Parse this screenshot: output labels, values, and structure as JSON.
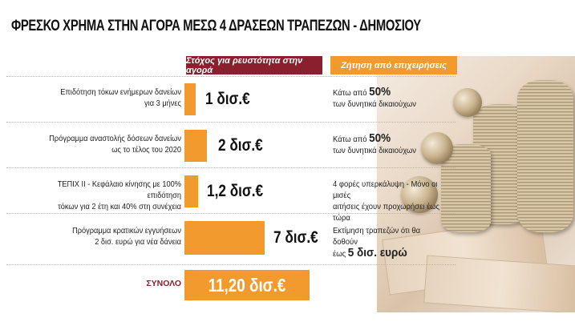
{
  "title": "ΦΡΕΣΚΟ ΧΡΗΜΑ ΣΤΗΝ ΑΓΟΡΑ ΜΕΣΩ 4 ΔΡΑΣΕΩΝ ΤΡΑΠΕΖΩΝ - ΔΗΜΟΣΙΟΥ",
  "headers": {
    "stock": "Στόχος για ρευστότητα στην αγορά",
    "demand": "Ζήτηση από επιχειρήσεις"
  },
  "rows": [
    {
      "label_line1": "Επιδότηση τόκων ενήμερων δανείων",
      "label_line2": "για 3 μήνες",
      "value": "1 δισ.€",
      "amount": 1.0,
      "demand_line1_prefix": "Κάτω από",
      "demand_line1_big": "50%",
      "demand_line2": "των δυνητικά δικαιούχων"
    },
    {
      "label_line1": "Πρόγραμμα αναστολής δόσεων δανείων",
      "label_line2": "ως το τέλος του 2020",
      "value": "2 δισ.€",
      "amount": 2.0,
      "demand_line1_prefix": "Κάτω από",
      "demand_line1_big": "50%",
      "demand_line2": "των δυνητικά δικαιούχων"
    },
    {
      "label_line1": "ΤΕΠΙΧ ΙΙ - Κεφάλαιο κίνησης με 100% επιδότηση",
      "label_line2": "τόκων για 2 έτη και 40% στη συνέχεια",
      "value": "1,2 δισ.€",
      "amount": 1.2,
      "demand_line1": "4 φορές υπερκάλυψη - Μόνο οι μισές",
      "demand_line2": "αιτήσεις έχουν προχωρήσει έως τώρα"
    },
    {
      "label_line1": "Πρόγραμμα κρατικών εγγυήσεων",
      "label_line2": "2 δισ. ευρώ για νέα δάνεια",
      "value": "7 δισ.€",
      "amount": 7.0,
      "demand_line1": "Εκτίμηση τραπεζών ότι θα δοθούν",
      "demand_line2_prefix": "έως",
      "demand_line2_big": "5 δισ. ευρώ"
    }
  ],
  "total": {
    "label": "ΣΥΝΟΛΟ",
    "value": "11,20 δισ.€",
    "amount": 11.2
  },
  "colors": {
    "accent_orange": "#f39a2e",
    "accent_burgundy": "#8a1f2d"
  },
  "decor": "coins-and-banknotes-photo"
}
